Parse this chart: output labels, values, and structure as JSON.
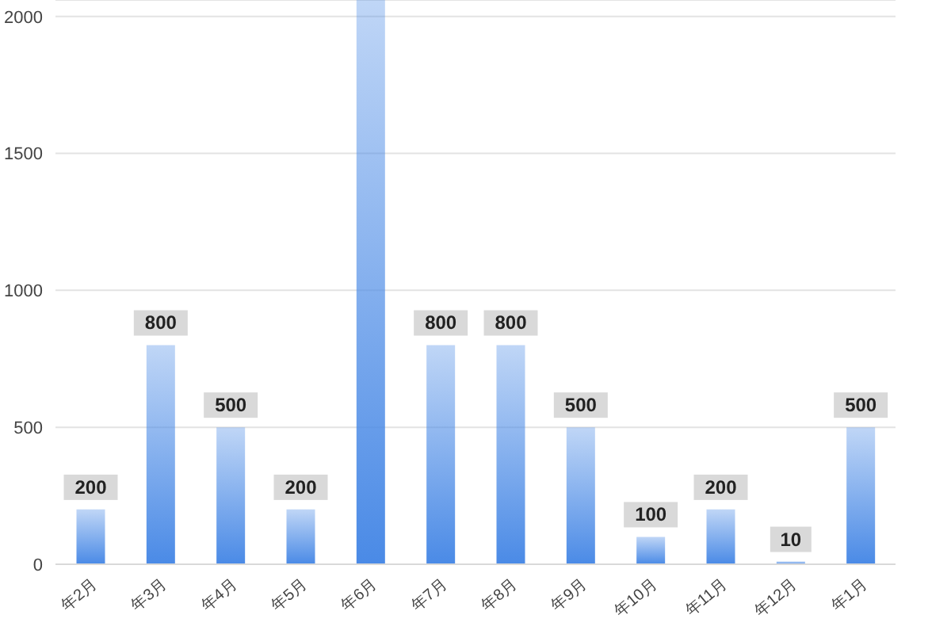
{
  "chart_data": {
    "type": "bar",
    "categories": [
      "年2月",
      "年3月",
      "年4月",
      "年5月",
      "年6月",
      "年7月",
      "年8月",
      "年9月",
      "年10月",
      "年11月",
      "年12月",
      "年1月"
    ],
    "values": [
      200,
      800,
      500,
      200,
      2060,
      800,
      800,
      500,
      100,
      200,
      10,
      500
    ],
    "value_labels": [
      "200",
      "800",
      "500",
      "200",
      null,
      "800",
      "800",
      "500",
      "100",
      "200",
      "10",
      "500"
    ],
    "color": "#4a8ae6",
    "ylim": [
      0,
      2060
    ],
    "yticks": [
      0,
      500,
      1000,
      1500,
      2000
    ],
    "grid": "y",
    "legend": false
  }
}
